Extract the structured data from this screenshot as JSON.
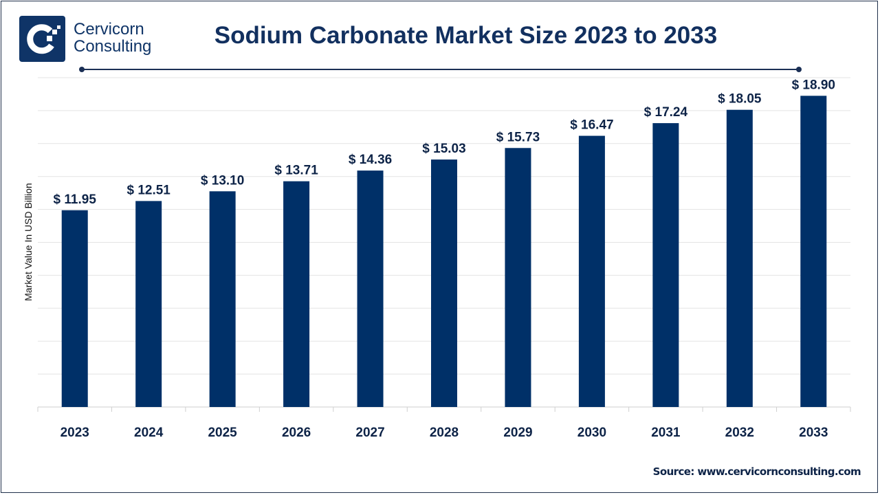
{
  "brand": {
    "line1": "Cervicorn",
    "line2": "Consulting"
  },
  "source": "Source: www.cervicornconsulting.com",
  "colors": {
    "bar": "#003068",
    "title": "#12305f",
    "grid": "#e3e3e3"
  },
  "chart_data": {
    "type": "bar",
    "title": "Sodium Carbonate Market Size 2023 to 2033",
    "xlabel": "",
    "ylabel": "Market Value In USD Billion",
    "categories": [
      "2023",
      "2024",
      "2025",
      "2026",
      "2027",
      "2028",
      "2029",
      "2030",
      "2031",
      "2032",
      "2033"
    ],
    "values": [
      11.95,
      12.51,
      13.1,
      13.71,
      14.36,
      15.03,
      15.73,
      16.47,
      17.24,
      18.05,
      18.9
    ],
    "data_labels": [
      "$ 11.95",
      "$ 12.51",
      "$ 13.10",
      "$ 13.71",
      "$ 14.36",
      "$ 15.03",
      "$ 15.73",
      "$ 16.47",
      "$ 17.24",
      "$ 18.05",
      "$ 18.90"
    ],
    "ylim": [
      0,
      20
    ],
    "grid_step": 2,
    "grid": true,
    "legend": "none"
  }
}
